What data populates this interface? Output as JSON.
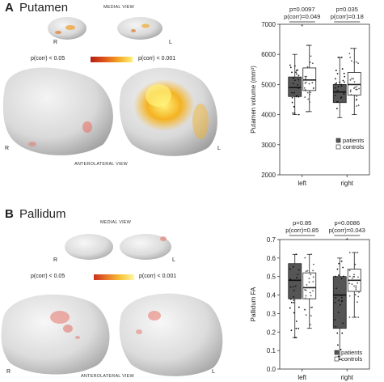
{
  "panels": [
    {
      "letter": "A",
      "title": "Putamen",
      "medial_label": "MEDIAL VIEW",
      "anterolateral_label": "ANTEROLATERAL VIEW",
      "side_left": "R",
      "side_right": "L",
      "scale_low": "p(corr) < 0.05",
      "scale_high": "p(corr) < 0.001",
      "colors": {
        "low": "#b21f12",
        "high": "#fff27a"
      }
    },
    {
      "letter": "B",
      "title": "Pallidum",
      "medial_label": "MEDIAL VIEW",
      "anterolateral_label": "ANTEROLATERAL VIEW",
      "side_left": "R",
      "side_right": "L",
      "scale_low": "p(corr) < 0.05",
      "scale_high": "p(corr) < 0.001",
      "colors": {
        "low": "#c9301c",
        "high": "#fff7a6"
      }
    }
  ],
  "chart_data": [
    {
      "type": "box",
      "ylabel": "Putamen volume (mm³)",
      "ylim": [
        2000,
        7000
      ],
      "yticks": [
        2000,
        3000,
        4000,
        5000,
        6000,
        7000
      ],
      "categories": [
        "left",
        "right"
      ],
      "series": [
        {
          "name": "patients",
          "color": "#555555",
          "boxes": [
            {
              "q1": 4600,
              "median": 4900,
              "q3": 5250,
              "whisker_low": 4000,
              "whisker_high": 6000
            },
            {
              "q1": 4400,
              "median": 4750,
              "q3": 5000,
              "whisker_low": 3900,
              "whisker_high": 5900
            }
          ]
        },
        {
          "name": "controls",
          "color": "#ffffff",
          "boxes": [
            {
              "q1": 4800,
              "median": 5150,
              "q3": 5550,
              "whisker_low": 4100,
              "whisker_high": 6300
            },
            {
              "q1": 4650,
              "median": 5000,
              "q3": 5400,
              "whisker_low": 4000,
              "whisker_high": 6200
            }
          ]
        }
      ],
      "annotations": [
        {
          "category": "left",
          "line1": "p=0.0097",
          "line2": "p(corr)=0.049",
          "star": "*"
        },
        {
          "category": "right",
          "line1": "p=0.035",
          "line2": "p(corr)=0.18",
          "star": ""
        }
      ],
      "legend": "bottom-right"
    },
    {
      "type": "box",
      "ylabel": "Pallidum FA",
      "ylim": [
        0,
        0.7
      ],
      "yticks": [
        0.0,
        0.1,
        0.2,
        0.3,
        0.4,
        0.5,
        0.6,
        0.7
      ],
      "categories": [
        "left",
        "right"
      ],
      "series": [
        {
          "name": "patients",
          "color": "#555555",
          "boxes": [
            {
              "q1": 0.38,
              "median": 0.48,
              "q3": 0.57,
              "whisker_low": 0.17,
              "whisker_high": 0.62
            },
            {
              "q1": 0.22,
              "median": 0.4,
              "q3": 0.5,
              "whisker_low": 0.05,
              "whisker_high": 0.6
            }
          ]
        },
        {
          "name": "controls",
          "color": "#ffffff",
          "boxes": [
            {
              "q1": 0.38,
              "median": 0.44,
              "q3": 0.52,
              "whisker_low": 0.22,
              "whisker_high": 0.62
            },
            {
              "q1": 0.42,
              "median": 0.48,
              "q3": 0.54,
              "whisker_low": 0.28,
              "whisker_high": 0.63
            }
          ]
        }
      ],
      "annotations": [
        {
          "category": "left",
          "line1": "p=0.85",
          "line2": "p(corr)=0.85",
          "star": ""
        },
        {
          "category": "right",
          "line1": "p=0.0086",
          "line2": "p(corr)=0.043",
          "star": "*"
        }
      ],
      "legend": "bottom-right"
    }
  ]
}
